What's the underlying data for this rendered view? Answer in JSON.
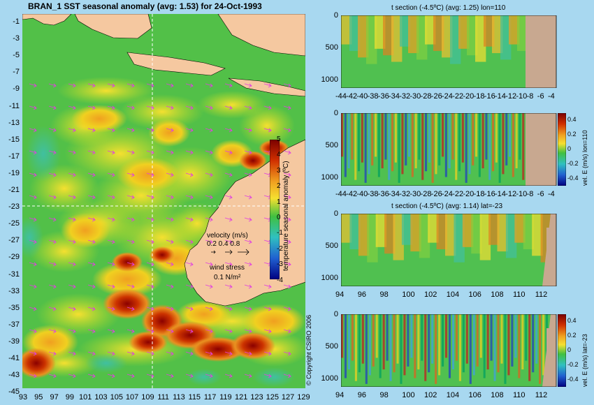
{
  "main_map": {
    "title": "BRAN_1  SST seasonal anomaly  (avg: 1.53) for 24-Oct-1993",
    "lat_ticks": [
      "-1",
      "-3",
      "-5",
      "-7",
      "-9",
      "-11",
      "-13",
      "-15",
      "-17",
      "-19",
      "-21",
      "-23",
      "-25",
      "-27",
      "-29",
      "-31",
      "-33",
      "-35",
      "-37",
      "-39",
      "-41",
      "-43",
      "-45"
    ],
    "lon_ticks": [
      "93",
      "95",
      "97",
      "99",
      "101",
      "103",
      "105",
      "107",
      "109",
      "111",
      "113",
      "115",
      "117",
      "119",
      "121",
      "123",
      "125",
      "127",
      "129"
    ],
    "colorbar": {
      "label": "temperature seasonal anomaly (ºC)",
      "ticks": [
        "5",
        "4",
        "3",
        "2",
        "1",
        "0",
        "-1",
        "-2",
        "-3",
        "-4"
      ]
    },
    "legend": {
      "velocity_title": "velocity (m/s)",
      "velocity_values": "0.2 0.4 0.8",
      "wind_title": "wind stress",
      "wind_value": "0.1 N/m²"
    },
    "copyright": "© Copyright CSIRO 2006"
  },
  "panels": [
    {
      "title": "t section (-4.5ºC) (avg: 1.25) lon=110",
      "y_ticks": [
        "0",
        "500",
        "1000"
      ],
      "x_ticks": [
        "-44",
        "-42",
        "-40",
        "-38",
        "-36",
        "-34",
        "-32",
        "-30",
        "-28",
        "-26",
        "-24",
        "-22",
        "-20",
        "-18",
        "-16",
        "-14",
        "-12",
        "-10",
        "-8",
        "-6",
        "-4"
      ]
    },
    {
      "title": "",
      "y_ticks": [
        "0",
        "500",
        "1000"
      ],
      "x_ticks": [
        "-44",
        "-42",
        "-40",
        "-38",
        "-36",
        "-34",
        "-32",
        "-30",
        "-28",
        "-26",
        "-24",
        "-22",
        "-20",
        "-18",
        "-16",
        "-14",
        "-12",
        "-10",
        "-8",
        "-6",
        "-4"
      ],
      "cbar_label": "vel. E (m/s) lon=110",
      "cbar_ticks": [
        "0.4",
        "0.2",
        "0",
        "-0.2",
        "-0.4"
      ]
    },
    {
      "title": "t section (-4.5ºC) (avg: 1.14) lat=-23",
      "y_ticks": [
        "0",
        "500",
        "1000"
      ],
      "x_ticks": [
        "94",
        "96",
        "98",
        "100",
        "102",
        "104",
        "106",
        "108",
        "110",
        "112"
      ]
    },
    {
      "title": "",
      "y_ticks": [
        "0",
        "500",
        "1000"
      ],
      "x_ticks": [
        "94",
        "96",
        "98",
        "100",
        "102",
        "104",
        "106",
        "108",
        "110",
        "112"
      ],
      "cbar_label": "vel. E (m/s) lat=-23",
      "cbar_ticks": [
        "0.4",
        "0.2",
        "0",
        "-0.2",
        "-0.4"
      ]
    }
  ],
  "colors": {
    "ocean_base": "#44bb44",
    "land": "#f5c8a0",
    "section_land": "#c8a890",
    "background": "#a8d8f0"
  }
}
